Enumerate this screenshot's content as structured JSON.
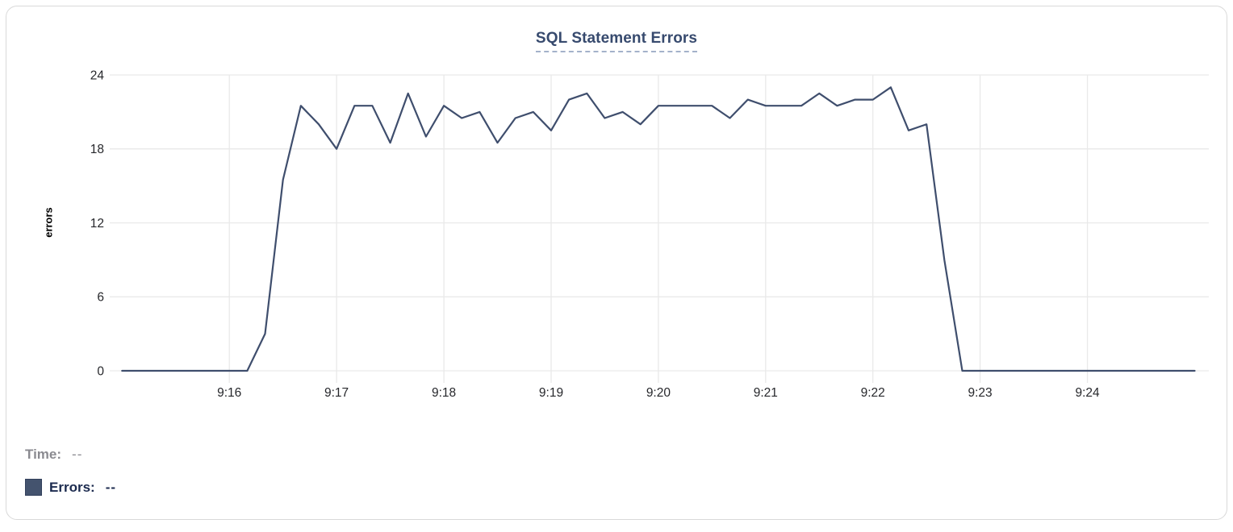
{
  "card": {
    "background": "#ffffff",
    "border_color": "#d9d9d9"
  },
  "chart_data": {
    "type": "line",
    "title": "SQL Statement Errors",
    "xlabel": "",
    "ylabel": "errors",
    "ylim": [
      0,
      24
    ],
    "y_ticks": [
      0,
      6,
      12,
      18,
      24
    ],
    "x_ticks": [
      {
        "t": 60,
        "label": "9:16"
      },
      {
        "t": 120,
        "label": "9:17"
      },
      {
        "t": 180,
        "label": "9:18"
      },
      {
        "t": 240,
        "label": "9:19"
      },
      {
        "t": 300,
        "label": "9:20"
      },
      {
        "t": 360,
        "label": "9:21"
      },
      {
        "t": 420,
        "label": "9:22"
      },
      {
        "t": 480,
        "label": "9:23"
      },
      {
        "t": 540,
        "label": "9:24"
      }
    ],
    "x_range": {
      "start_label": "9:15:00",
      "end_label": "9:25:00",
      "seconds": [
        0,
        600
      ]
    },
    "grid": true,
    "legend_position": "bottom-left",
    "series": [
      {
        "name": "Errors",
        "color": "#3f4e6d",
        "interval_seconds": 10,
        "times": [
          "9:15:00",
          "9:15:10",
          "9:15:20",
          "9:15:30",
          "9:15:40",
          "9:15:50",
          "9:16:00",
          "9:16:10",
          "9:16:20",
          "9:16:30",
          "9:16:40",
          "9:16:50",
          "9:17:00",
          "9:17:10",
          "9:17:20",
          "9:17:30",
          "9:17:40",
          "9:17:50",
          "9:18:00",
          "9:18:10",
          "9:18:20",
          "9:18:30",
          "9:18:40",
          "9:18:50",
          "9:19:00",
          "9:19:10",
          "9:19:20",
          "9:19:30",
          "9:19:40",
          "9:19:50",
          "9:20:00",
          "9:20:10",
          "9:20:20",
          "9:20:30",
          "9:20:40",
          "9:20:50",
          "9:21:00",
          "9:21:10",
          "9:21:20",
          "9:21:30",
          "9:21:40",
          "9:21:50",
          "9:22:00",
          "9:22:10",
          "9:22:20",
          "9:22:30",
          "9:22:40",
          "9:22:50",
          "9:23:00",
          "9:23:10",
          "9:23:20",
          "9:23:30",
          "9:23:40",
          "9:23:50",
          "9:24:00",
          "9:24:10",
          "9:24:20",
          "9:24:30",
          "9:24:40",
          "9:24:50",
          "9:25:00"
        ],
        "values": [
          0,
          0,
          0,
          0,
          0,
          0,
          0,
          0,
          3,
          15.5,
          21.5,
          20,
          18,
          21.5,
          21.5,
          18.5,
          22.5,
          19,
          21.5,
          20.5,
          21,
          18.5,
          20.5,
          21,
          19.5,
          22,
          22.5,
          20.5,
          21,
          20,
          21.5,
          21.5,
          21.5,
          21.5,
          20.5,
          22,
          21.5,
          21.5,
          21.5,
          22.5,
          21.5,
          22,
          22,
          23,
          19.5,
          20,
          9,
          0,
          0,
          0,
          0,
          0,
          0,
          0,
          0,
          0,
          0,
          0,
          0,
          0,
          0
        ]
      }
    ]
  },
  "tooltip_readout": {
    "time_label": "Time:",
    "time_value": "--",
    "errors_label": "Errors:",
    "errors_value": "--",
    "swatch_color": "#44536e"
  },
  "colors": {
    "line": "#3f4e6d",
    "grid": "#e9e9e9",
    "title": "#374a6e",
    "title_underline": "#a4b2ca",
    "axis_text": "#26272b",
    "time_text": "#8a8a90",
    "errors_text": "#1b2a4e",
    "card_border": "#d9d9d9",
    "swatch": "#44536e",
    "swatch_border": "#32405c"
  }
}
